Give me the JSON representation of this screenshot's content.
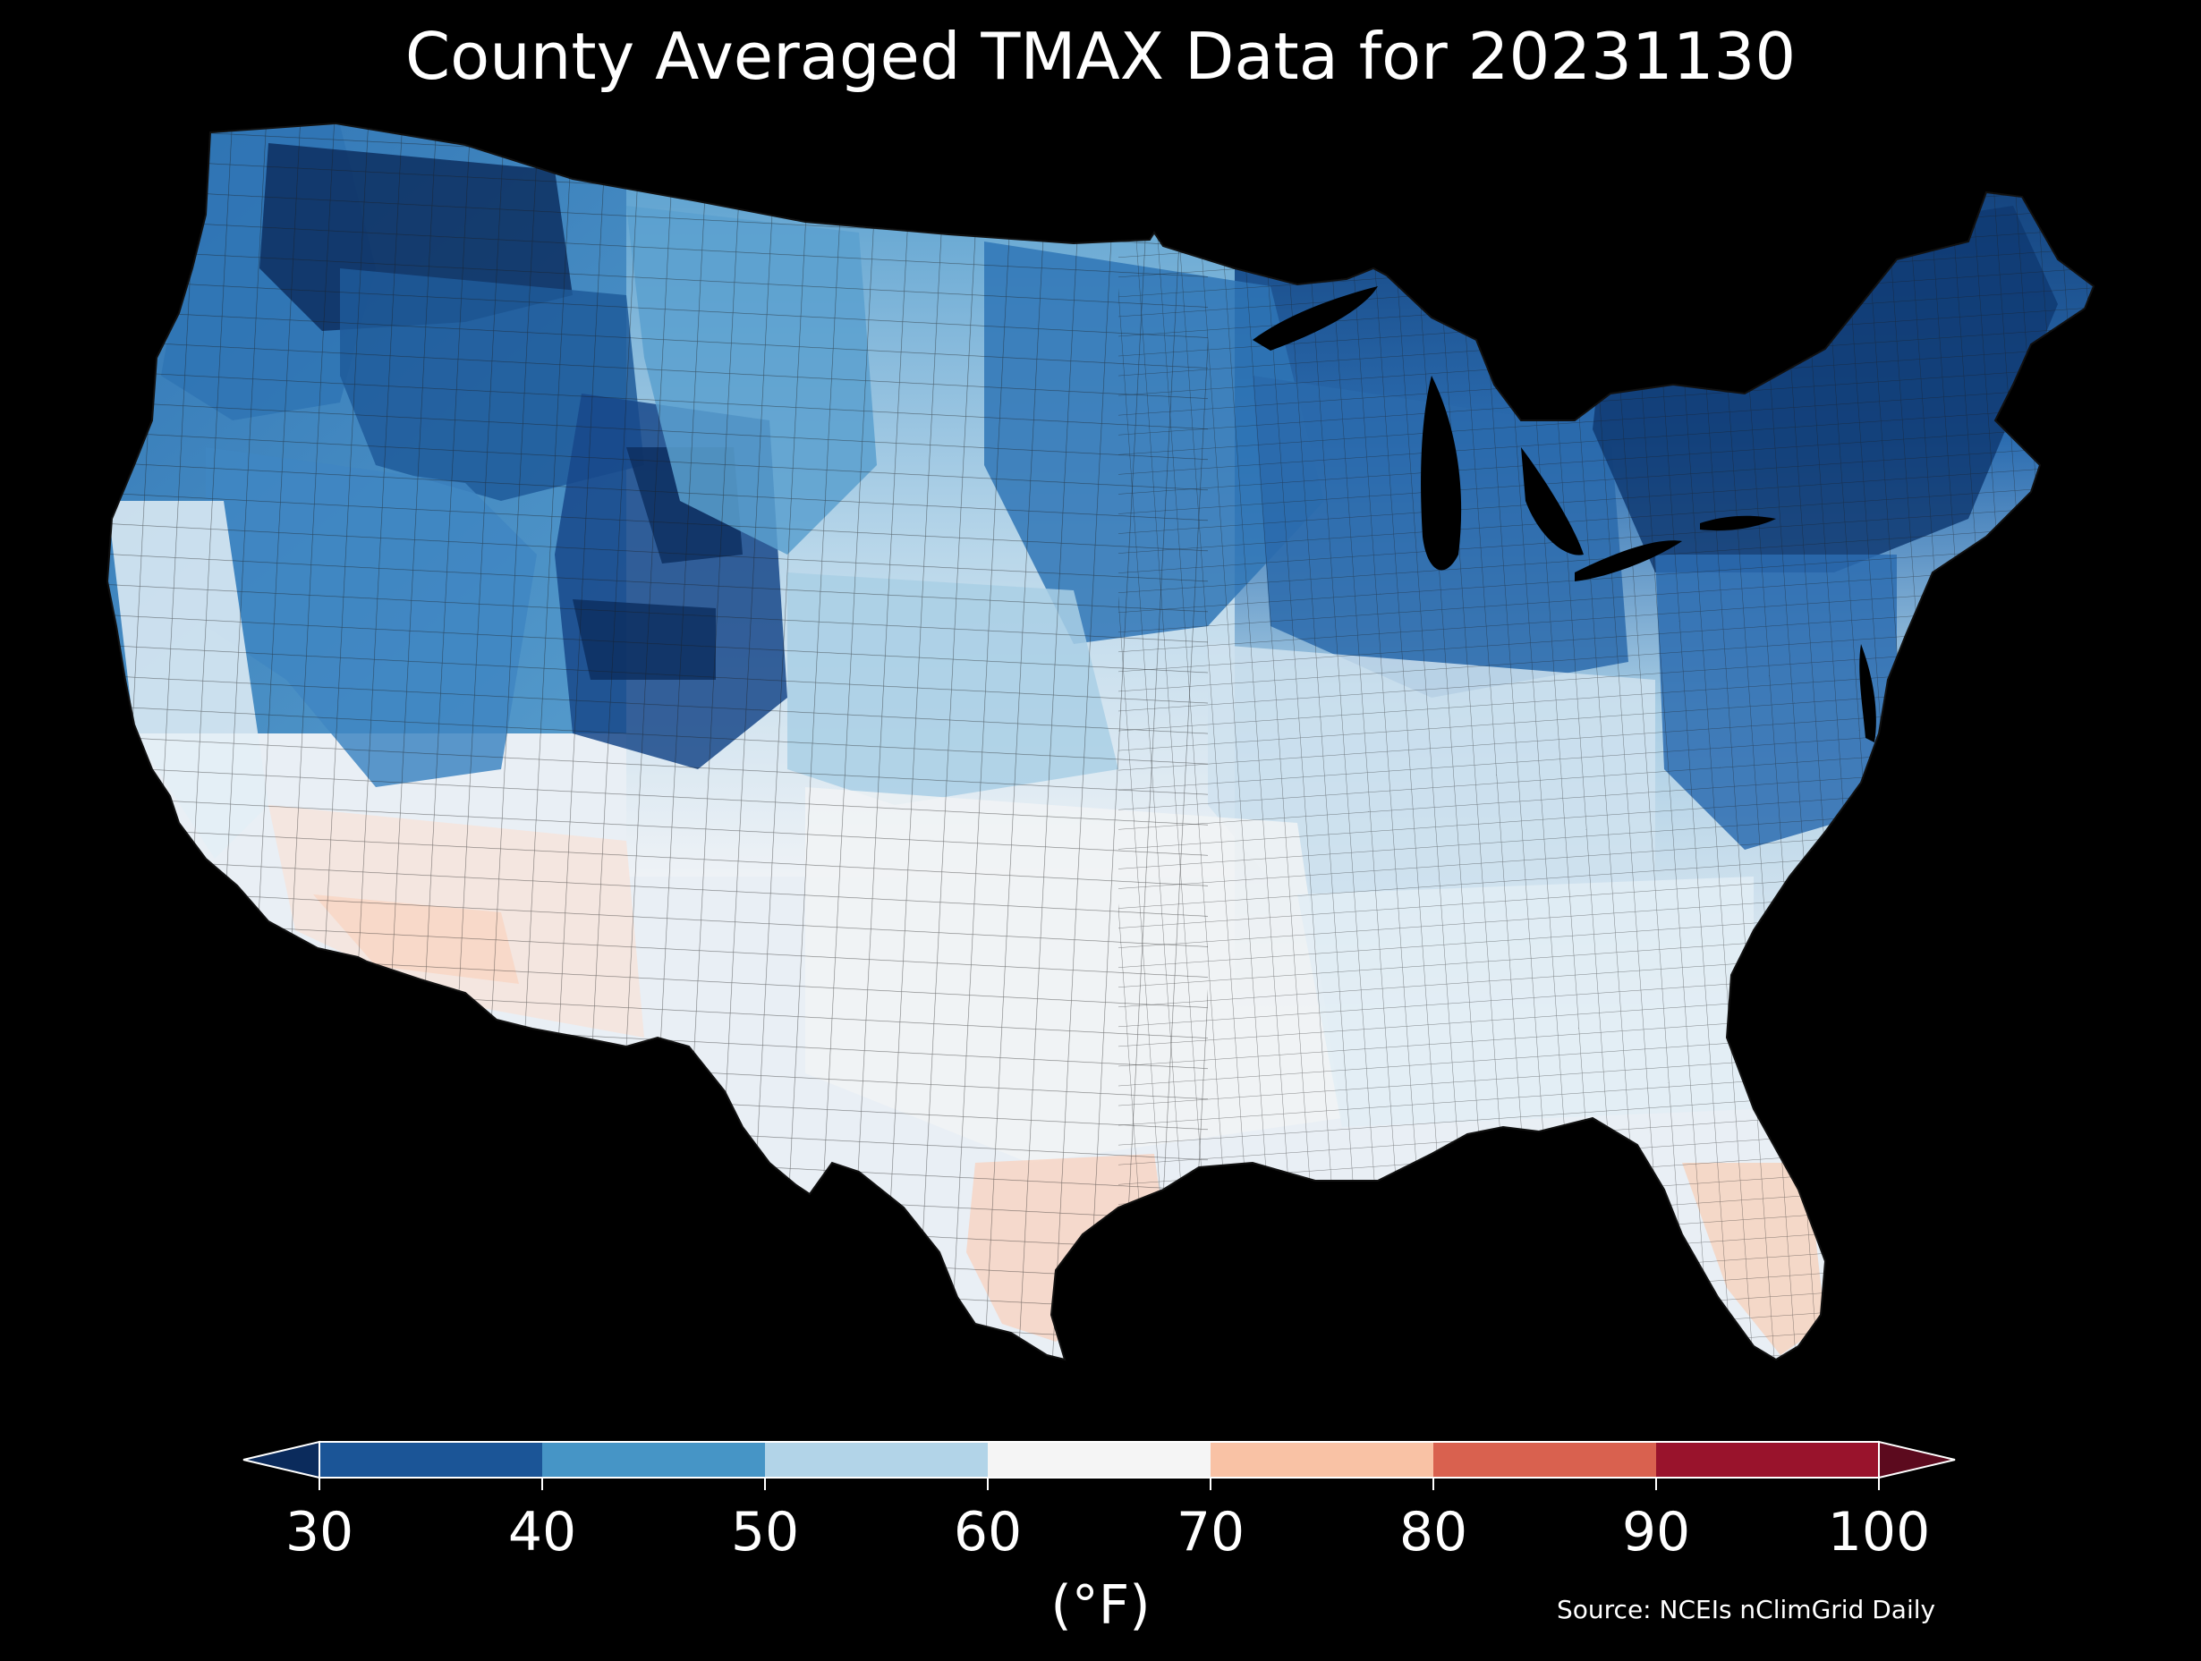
{
  "title": "County Averaged TMAX Data for 20231130",
  "source": "Source: NCEIs nClimGrid Daily",
  "colorbar": {
    "units": "(°F)",
    "ticks": [
      30,
      40,
      50,
      60,
      70,
      80,
      90,
      100
    ],
    "tick_labels": [
      "30",
      "40",
      "50",
      "60",
      "70",
      "80",
      "90",
      "100"
    ],
    "bins": [
      {
        "from": 30,
        "to": 40,
        "color": "#1b5597"
      },
      {
        "from": 40,
        "to": 50,
        "color": "#4695c6"
      },
      {
        "from": 50,
        "to": 60,
        "color": "#b2d4e8"
      },
      {
        "from": 60,
        "to": 70,
        "color": "#f5f5f5"
      },
      {
        "from": 70,
        "to": 80,
        "color": "#f9c2a5"
      },
      {
        "from": 80,
        "to": 90,
        "color": "#d9614f"
      },
      {
        "from": 90,
        "to": 100,
        "color": "#99132c"
      }
    ],
    "extend_low_color": "#0b2b5c",
    "extend_high_color": "#5c0a1e"
  },
  "map": {
    "background": "#000000",
    "county_border_color": "#222222",
    "regions": [
      {
        "name": "northern-rockies",
        "color": "#1e5a9a"
      },
      {
        "name": "montana-high",
        "color": "#0d2f60"
      },
      {
        "name": "pacific-northwest",
        "color": "#2f74b4"
      },
      {
        "name": "great-basin",
        "color": "#3f86c2"
      },
      {
        "name": "wyoming-colorado",
        "color": "#17488a"
      },
      {
        "name": "northern-plains",
        "color": "#5aa0cf"
      },
      {
        "name": "upper-midwest",
        "color": "#2f75b6"
      },
      {
        "name": "great-lakes",
        "color": "#2a6aac"
      },
      {
        "name": "northeast",
        "color": "#0f3a72"
      },
      {
        "name": "mid-atlantic",
        "color": "#2b6cb0"
      },
      {
        "name": "central-plains",
        "color": "#a9cfe5"
      },
      {
        "name": "ohio-valley",
        "color": "#cfe2ef"
      },
      {
        "name": "southeast",
        "color": "#e2edf5"
      },
      {
        "name": "south-central",
        "color": "#f1f3f5"
      },
      {
        "name": "desert-southwest",
        "color": "#f6e4dc"
      },
      {
        "name": "southern-arizona",
        "color": "#f8d6c4"
      },
      {
        "name": "california-coast",
        "color": "#e3eef6"
      },
      {
        "name": "south-texas",
        "color": "#f7d5c4"
      },
      {
        "name": "florida",
        "color": "#f6d3bf"
      }
    ],
    "lakes_color": "#000000"
  }
}
